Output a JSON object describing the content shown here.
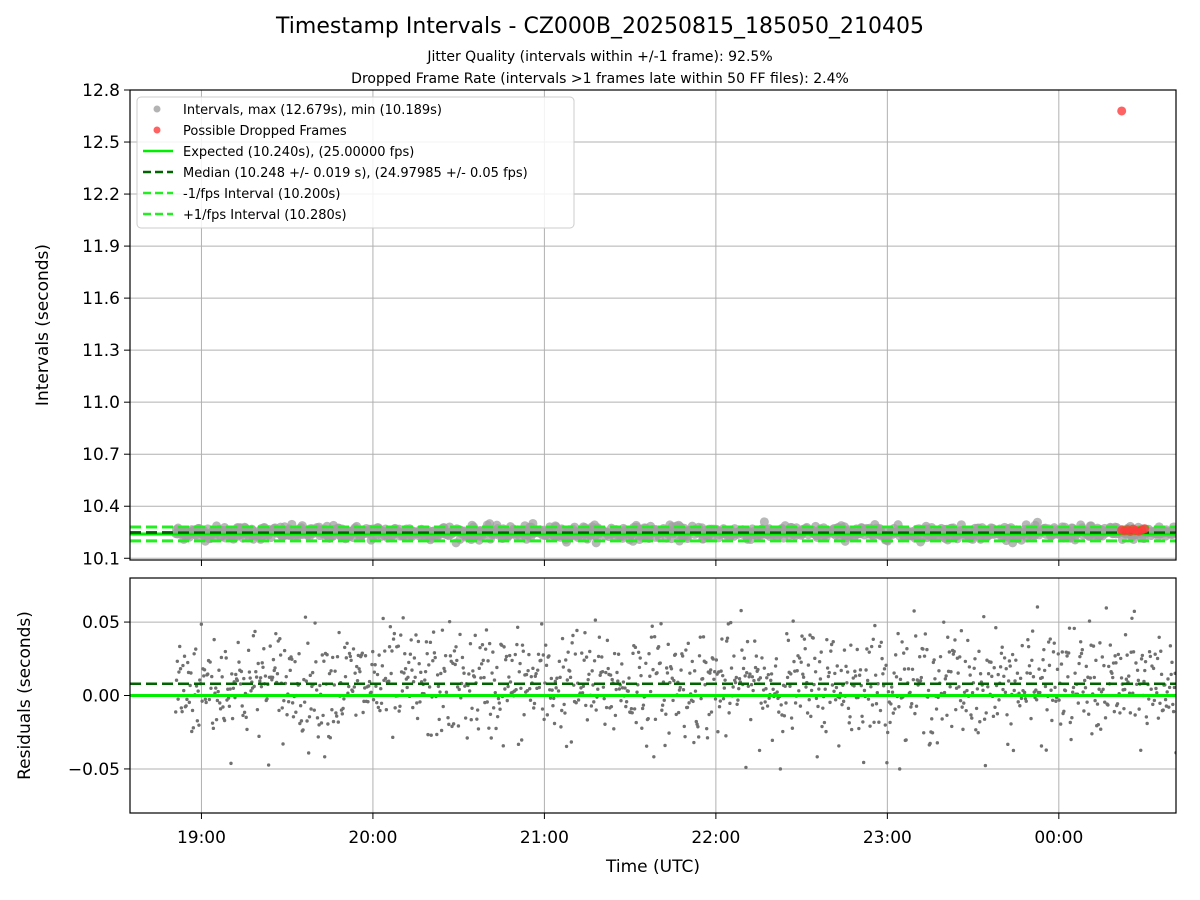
{
  "figure": {
    "title": "Timestamp Intervals - CZ000B_20250815_185050_210405",
    "subtitle_1": "Jitter Quality (intervals within +/-1 frame): 92.5%",
    "subtitle_2": "Dropped Frame Rate (intervals >1 frames late within 50 FF files): 2.4%"
  },
  "colors": {
    "intervals": "#a0a0a0",
    "dropped": "#ff3b3b",
    "expected": "#00ee00",
    "median": "#006400",
    "fps_interval": "#22ee22",
    "residuals": "#707070",
    "grid": "#b0b0b0"
  },
  "chart_data": [
    {
      "type": "scatter",
      "panel": "intervals",
      "ylabel": "Intervals (seconds)",
      "ylim": [
        10.09,
        12.8
      ],
      "yticks": [
        "10.1",
        "10.4",
        "10.7",
        "11.0",
        "11.3",
        "11.6",
        "11.9",
        "12.2",
        "12.5",
        "12.8"
      ],
      "grid": true,
      "legend_position": "upper-left",
      "series": [
        {
          "name": "Intervals, max (12.679s), min (10.189s)",
          "kind": "points",
          "y_center": 10.248,
          "y_spread": 0.019,
          "y_max": 12.679,
          "y_min": 10.189
        },
        {
          "name": "Possible Dropped Frames",
          "kind": "points",
          "points": [
            [
              "00:22",
              12.679
            ],
            [
              "00:22",
              10.262
            ],
            [
              "00:23",
              10.258
            ],
            [
              "00:24",
              10.265
            ],
            [
              "00:25",
              10.255
            ],
            [
              "00:26",
              10.268
            ],
            [
              "00:27",
              10.26
            ],
            [
              "00:28",
              10.256
            ],
            [
              "00:29",
              10.263
            ],
            [
              "00:30",
              10.27
            ]
          ]
        },
        {
          "name": "Expected (10.240s), (25.00000 fps)",
          "kind": "hline",
          "y": 10.24,
          "style": "solid"
        },
        {
          "name": "Median (10.248 +/- 0.019 s), (24.97985 +/- 0.05 fps)",
          "kind": "hline",
          "y": 10.248,
          "style": "dashed"
        },
        {
          "name": "-1/fps Interval (10.200s)",
          "kind": "hline",
          "y": 10.2,
          "style": "dashed"
        },
        {
          "name": "+1/fps Interval (10.280s)",
          "kind": "hline",
          "y": 10.28,
          "style": "dashed"
        }
      ]
    },
    {
      "type": "scatter",
      "panel": "residuals",
      "ylabel": "Residuals (seconds)",
      "xlabel": "Time (UTC)",
      "ylim": [
        -0.08,
        0.08
      ],
      "yticks": [
        "−0.05",
        "0.00",
        "0.05"
      ],
      "ytick_values": [
        -0.05,
        0.0,
        0.05
      ],
      "grid": true,
      "series": [
        {
          "name": "",
          "kind": "points",
          "y_center": 0.008,
          "y_spread": 0.019,
          "y_max": 0.066,
          "y_min": -0.05
        },
        {
          "name": "",
          "kind": "hline",
          "y": 0.0,
          "style": "solid"
        },
        {
          "name": "",
          "kind": "hline",
          "y": 0.008,
          "style": "dashed"
        }
      ]
    }
  ],
  "x_axis": {
    "start": "18:35",
    "end": "00:41",
    "data_start": "18:51",
    "data_end": "00:41",
    "ticks": [
      "19:00",
      "20:00",
      "21:00",
      "22:00",
      "23:00",
      "00:00"
    ]
  }
}
